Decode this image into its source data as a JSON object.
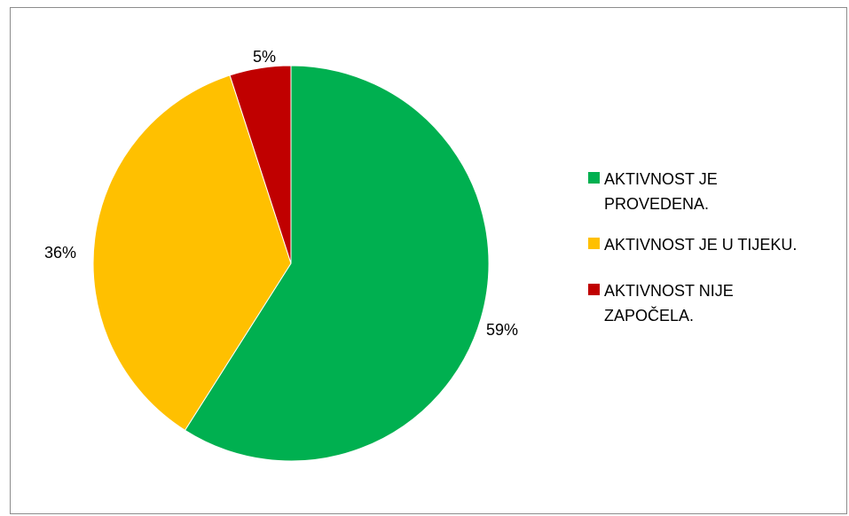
{
  "chart_data": {
    "type": "pie",
    "title": "",
    "slices": [
      {
        "label": "AKTIVNOST JE PROVEDENA.",
        "value": 59,
        "display": "59%",
        "color": "#00B050"
      },
      {
        "label": "AKTIVNOST JE U TIJEKU.",
        "value": 36,
        "display": "36%",
        "color": "#FFC000"
      },
      {
        "label": "AKTIVNOST NIJE ZAPOČELA.",
        "value": 5,
        "display": "5%",
        "color": "#C00000"
      }
    ],
    "start_angle_deg": 0,
    "direction": "clockwise",
    "legend_position": "right"
  }
}
